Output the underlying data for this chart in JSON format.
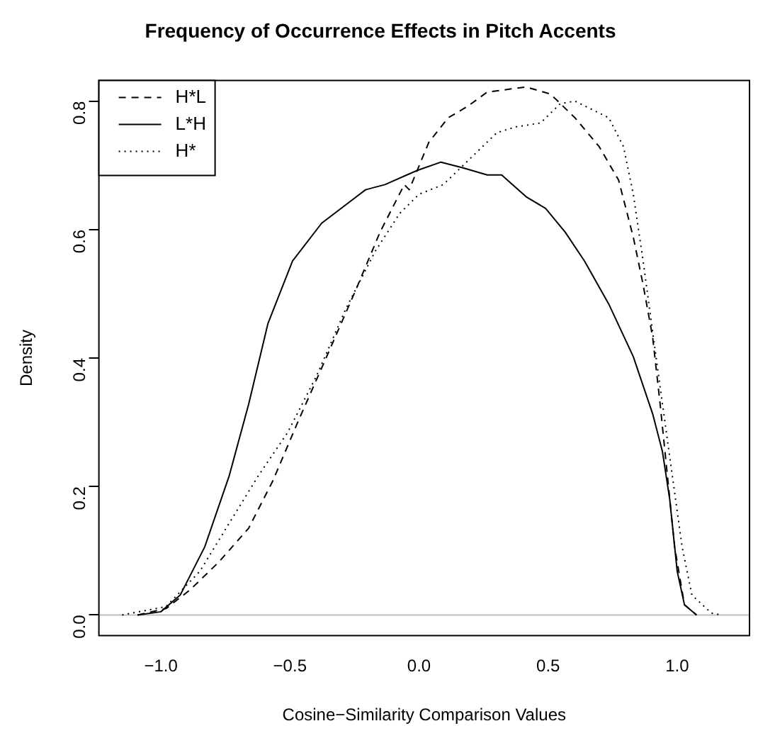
{
  "chart_data": {
    "type": "line",
    "title": "Frequency of Occurrence Effects in Pitch Accents",
    "xlabel": "Cosine−Similarity Comparison Values",
    "ylabel": "Density",
    "xlim": [
      -1.24,
      1.28
    ],
    "xticks": [
      {
        "value": -1,
        "label": "−1.0"
      },
      {
        "value": -0.5,
        "label": "−0.5"
      },
      {
        "value": 0,
        "label": "0.0"
      },
      0.5,
      {
        "value": 1,
        "label": "1.0"
      }
    ],
    "ylim": [
      -0.032,
      0.832
    ],
    "yticks": [
      {
        "value": 0,
        "label": "0.0"
      },
      0.2,
      0.4,
      0.6,
      0.8
    ],
    "grid": false,
    "legend": "top left",
    "marker": "none",
    "ref_lines": [
      {
        "axis": "y",
        "value": 0,
        "color": "#bebebe"
      }
    ],
    "series": [
      {
        "name": "H*L",
        "color": "#000000",
        "line_style": "dashed",
        "x": [
          -1.09,
          -0.98,
          -0.887,
          -0.774,
          -0.66,
          -0.566,
          -0.472,
          -0.358,
          -0.245,
          -0.151,
          -0.057,
          -0.038,
          0.038,
          0.113,
          0.189,
          0.264,
          0.415,
          0.509,
          0.604,
          0.698,
          0.773,
          0.83,
          0.868,
          0.905,
          0.934,
          0.962,
          0.99,
          1.028,
          1.075
        ],
        "values": [
          0,
          0.01,
          0.039,
          0.083,
          0.135,
          0.209,
          0.298,
          0.402,
          0.506,
          0.596,
          0.67,
          0.662,
          0.736,
          0.774,
          0.792,
          0.814,
          0.822,
          0.811,
          0.774,
          0.729,
          0.677,
          0.588,
          0.514,
          0.432,
          0.328,
          0.217,
          0.106,
          0.016,
          0
        ]
      },
      {
        "name": "L*H",
        "color": "#000000",
        "line_style": "solid",
        "x": [
          -1.09,
          -1.0,
          -0.925,
          -0.83,
          -0.735,
          -0.66,
          -0.585,
          -0.49,
          -0.377,
          -0.207,
          -0.132,
          -0.019,
          0.0,
          0.085,
          0.17,
          0.264,
          0.32,
          0.415,
          0.49,
          0.566,
          0.641,
          0.735,
          0.83,
          0.905,
          0.943,
          0.971,
          1.0,
          1.028,
          1.075
        ],
        "values": [
          0,
          0.005,
          0.031,
          0.106,
          0.217,
          0.328,
          0.454,
          0.551,
          0.61,
          0.662,
          0.67,
          0.69,
          0.693,
          0.705,
          0.696,
          0.685,
          0.685,
          0.651,
          0.633,
          0.596,
          0.551,
          0.484,
          0.402,
          0.313,
          0.254,
          0.18,
          0.068,
          0.016,
          0
        ]
      },
      {
        "name": "H*",
        "color": "#000000",
        "line_style": "dotted",
        "x": [
          -1.15,
          -0.98,
          -0.849,
          -0.735,
          -0.622,
          -0.509,
          -0.396,
          -0.283,
          -0.17,
          -0.075,
          0.0,
          0.094,
          0.189,
          0.302,
          0.377,
          0.471,
          0.547,
          0.604,
          0.735,
          0.792,
          0.83,
          0.868,
          0.905,
          0.943,
          0.981,
          1.019,
          1.057,
          1.132,
          1.17
        ],
        "values": [
          0,
          0.013,
          0.068,
          0.143,
          0.217,
          0.284,
          0.373,
          0.477,
          0.566,
          0.625,
          0.655,
          0.67,
          0.707,
          0.751,
          0.76,
          0.766,
          0.796,
          0.8,
          0.774,
          0.729,
          0.655,
          0.551,
          0.44,
          0.328,
          0.217,
          0.106,
          0.031,
          0.003,
          0
        ]
      }
    ]
  }
}
